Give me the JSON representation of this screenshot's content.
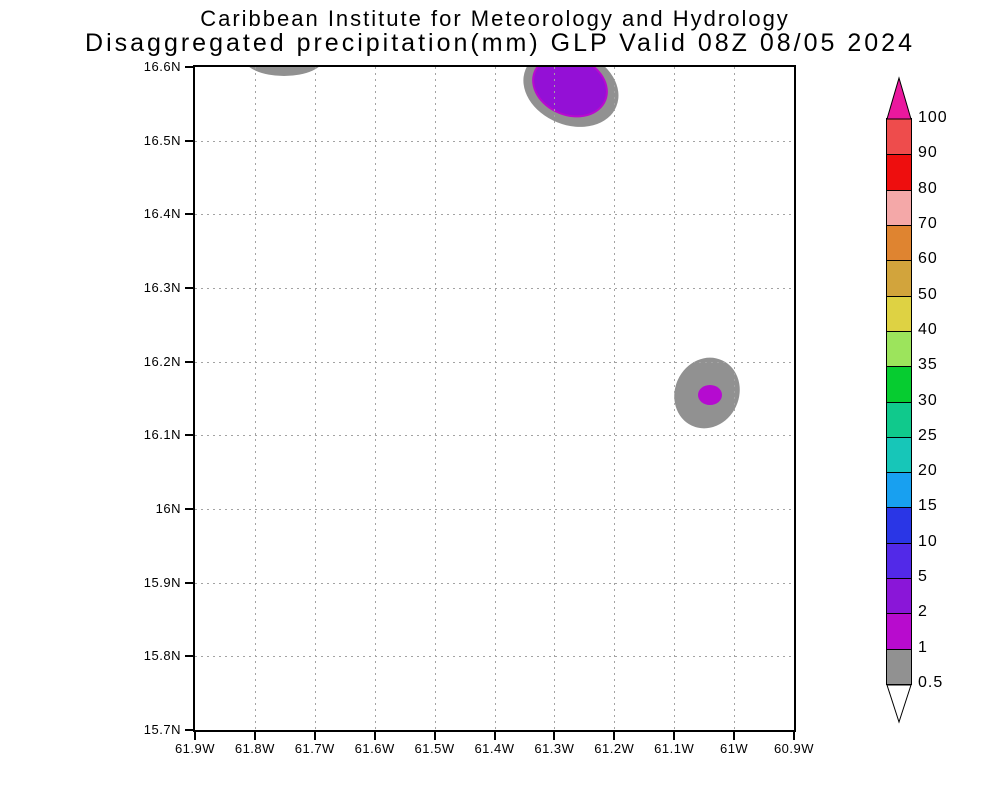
{
  "chart_data": {
    "type": "heatmap",
    "title": "Caribbean Institute for Meteorology and Hydrology",
    "subtitle": "Disaggregated precipitation(mm) GLP Valid 08Z 08/05 2024",
    "units": "mm",
    "grid": "dotted",
    "x_axis": {
      "ticks": [
        "61.9W",
        "61.8W",
        "61.7W",
        "61.6W",
        "61.5W",
        "61.4W",
        "61.3W",
        "61.2W",
        "61.1W",
        "61W",
        "60.9W"
      ],
      "lon_west_range": [
        61.9,
        60.9
      ]
    },
    "y_axis": {
      "ticks": [
        "16.6N",
        "16.5N",
        "16.4N",
        "16.3N",
        "16.2N",
        "16.1N",
        "16N",
        "15.9N",
        "15.8N",
        "15.7N"
      ],
      "lat_north_range": [
        16.6,
        15.7
      ]
    },
    "colorbar": {
      "labels_bottom_to_top": [
        "0.5",
        "1",
        "2",
        "5",
        "10",
        "15",
        "20",
        "25",
        "30",
        "35",
        "40",
        "50",
        "60",
        "70",
        "80",
        "90",
        "100"
      ],
      "segment_colors_bottom_to_top": [
        "#919191",
        "#B80BCE",
        "#8A16D8",
        "#5229E8",
        "#2A36E6",
        "#18A0F0",
        "#17C6B8",
        "#10C98C",
        "#06CC30",
        "#9CE45C",
        "#DED243",
        "#D2A43C",
        "#DF8430",
        "#F4A8A8",
        "#EE0E0E",
        "#EE4C4C"
      ],
      "over_arrow_color": "#EA189E",
      "under_arrow_color": "#FFFFFF"
    },
    "features": [
      {
        "name": "north-west-sliver-contour",
        "level_mm": "0.5-1",
        "color": "#919191",
        "lon_w": 61.751,
        "lat_n": 16.612,
        "rx_deg": 0.0668,
        "ry_deg": 0.0244,
        "rot_deg": 0
      },
      {
        "name": "north-cell-outer-contour",
        "level_mm": "0.5-1",
        "color": "#919191",
        "lon_w": 61.272,
        "lat_n": 16.5715,
        "rx_deg": 0.0818,
        "ry_deg": 0.05,
        "rot_deg": 22
      },
      {
        "name": "north-cell-inner-contour",
        "level_mm": "2-5",
        "color": "#9410D6",
        "edge_color": "#B80BCE",
        "lon_w": 61.277,
        "lat_n": 16.577,
        "rx_deg": 0.0618,
        "ry_deg": 0.038,
        "rot_deg": 22
      },
      {
        "name": "east-cell-outer-contour",
        "level_mm": "0.5-1",
        "color": "#919191",
        "lon_w": 61.045,
        "lat_n": 16.1575,
        "rx_deg": 0.0534,
        "ry_deg": 0.0489,
        "rot_deg": 25
      },
      {
        "name": "east-cell-core-contour",
        "level_mm": "1-2",
        "color": "#B50BD0",
        "lon_w": 61.04,
        "lat_n": 16.155,
        "rx_deg": 0.02,
        "ry_deg": 0.0136,
        "rot_deg": 0
      }
    ]
  }
}
